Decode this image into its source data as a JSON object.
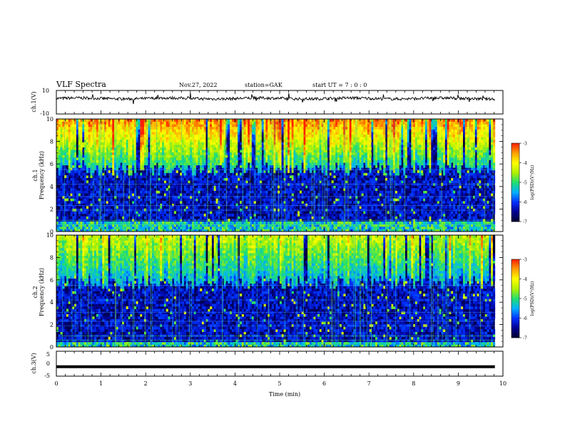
{
  "header": {
    "title": "VLF Spectra",
    "date": "Nov.27, 2022",
    "station": "station=GAK",
    "start_ut": "start UT = 7 : 0 : 0"
  },
  "chart_data": [
    {
      "type": "line",
      "ylabel": "ch.1(V)",
      "ylim": [
        -10,
        10
      ],
      "yticks": [
        "10",
        "-10"
      ],
      "xlim": [
        0,
        10
      ],
      "trace": {
        "color": "#000000",
        "baseline_v": 3.2,
        "noise_v": 1.2
      }
    },
    {
      "type": "heatmap",
      "ylabel": "ch.1\nFrequency (kHz)",
      "ylim": [
        0,
        10
      ],
      "yticks": [
        "0",
        "2",
        "4",
        "6",
        "8",
        "10"
      ],
      "xlim": [
        0,
        10
      ],
      "colorbar": {
        "label": "log(PSD)(V²/Hz)",
        "range": [
          -7,
          -3
        ],
        "ticks": [
          "-3",
          "-4",
          "-5",
          "-6",
          "-7"
        ]
      },
      "colormap": [
        "#000030",
        "#000090",
        "#0030ff",
        "#00b0ff",
        "#20e070",
        "#b0f000",
        "#ffff00",
        "#ffa000",
        "#ff2000"
      ],
      "hiss_band_top_khz": 5.5,
      "hiss_level_top": -3.4,
      "hiss_level_bottom": -5.3,
      "background_level": -6.8,
      "low_freq_band_khz": [
        0,
        0.8
      ]
    },
    {
      "type": "heatmap",
      "ylabel": "ch.2\nFrequency (kHz)",
      "ylim": [
        0,
        10
      ],
      "yticks": [
        "0",
        "2",
        "4",
        "6",
        "8",
        "10"
      ],
      "xlim": [
        0,
        10
      ],
      "colorbar": {
        "label": "log(PSD)(V²/Hz)",
        "range": [
          -7,
          -3
        ],
        "ticks": [
          "-3",
          "-4",
          "-5",
          "-6",
          "-7"
        ]
      },
      "colormap": [
        "#000030",
        "#000090",
        "#0030ff",
        "#00b0ff",
        "#20e070",
        "#b0f000",
        "#ffff00",
        "#ffa000",
        "#ff2000"
      ],
      "hiss_band_top_khz": 5.8,
      "hiss_level_top": -4.3,
      "hiss_level_bottom": -5.5,
      "background_level": -6.8,
      "low_freq_band_khz": [
        0,
        0.5
      ]
    },
    {
      "type": "line",
      "ylabel": "ch.3(V)",
      "ylim": [
        -5,
        5
      ],
      "yticks": [
        "5",
        "0",
        "-5"
      ],
      "xlim": [
        0,
        10
      ],
      "xticks": [
        "0",
        "1",
        "2",
        "3",
        "4",
        "5",
        "6",
        "7",
        "8",
        "9",
        "10"
      ],
      "xlabel": "Time (min)",
      "trace": {
        "color": "#000000",
        "value_v": -1.2
      }
    }
  ]
}
